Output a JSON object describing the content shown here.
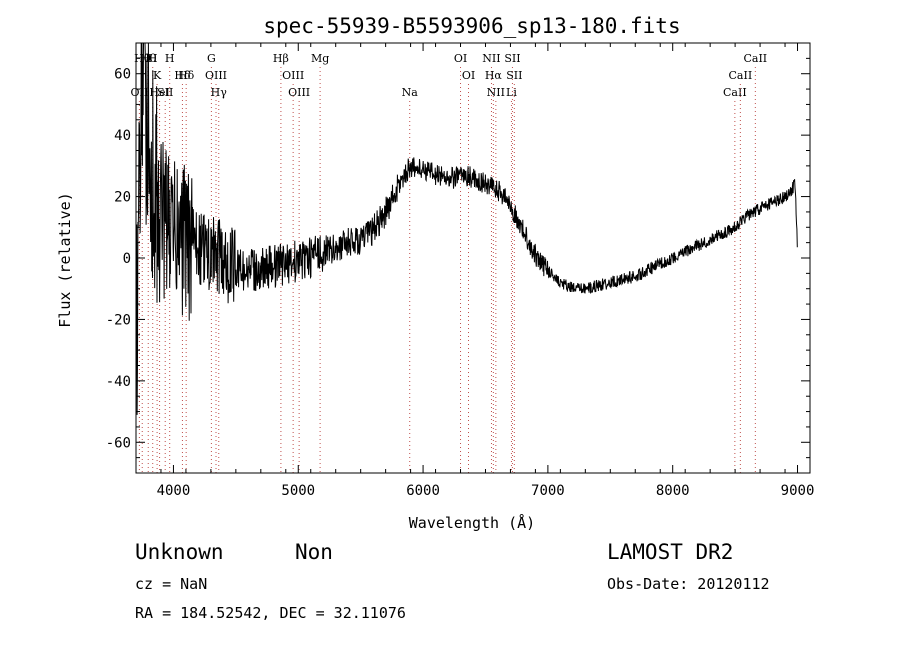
{
  "chart_data": {
    "type": "line",
    "title": "spec-55939-B5593906_sp13-180.fits",
    "xlabel": "Wavelength (Å)",
    "ylabel": "Flux (relative)",
    "xlim": [
      3700,
      9100
    ],
    "ylim": [
      -70,
      70
    ],
    "xticks": [
      4000,
      5000,
      6000,
      7000,
      8000,
      9000
    ],
    "yticks": [
      -60,
      -40,
      -20,
      0,
      20,
      40,
      60
    ],
    "grid": false,
    "legend": "none",
    "line_color": "#000000",
    "marker_color": "#c0504d",
    "series": [
      {
        "x": [
          3700,
          3750,
          3800,
          3850,
          3900,
          3950,
          4000,
          4050,
          4100,
          4150,
          4200,
          4250,
          4300,
          4350,
          4400,
          4450,
          4500,
          4550,
          4600,
          4650,
          4700,
          4750,
          4800,
          4850,
          4900,
          4950,
          5000,
          5050,
          5100,
          5150,
          5200,
          5250,
          5300,
          5350,
          5400,
          5450,
          5500,
          5550,
          5600,
          5650,
          5700,
          5750,
          5800,
          5850,
          5900,
          5950,
          6000,
          6050,
          6100,
          6150,
          6200,
          6250,
          6300,
          6350,
          6400,
          6450,
          6500,
          6550,
          6600,
          6650,
          6700,
          6750,
          6800,
          6850,
          6900,
          6950,
          7000,
          7050,
          7100,
          7150,
          7200,
          7250,
          7300,
          7400,
          7500,
          7600,
          7700,
          7800,
          7900,
          8000,
          8100,
          8200,
          8300,
          8400,
          8500,
          8550,
          8600,
          8700,
          8800,
          8900,
          8950,
          8980,
          9000
        ],
        "y": [
          -30,
          60,
          40,
          20,
          15,
          10,
          8,
          6,
          5,
          4,
          3,
          2,
          1,
          0,
          -1,
          -2,
          -3,
          -4,
          -4,
          -4,
          -4,
          -3,
          -3,
          -2,
          -2,
          -1,
          -1,
          0,
          0,
          1,
          2,
          3,
          3,
          4,
          5,
          5,
          6,
          7,
          9,
          12,
          15,
          19,
          23,
          27,
          30,
          29,
          29,
          28,
          27,
          27,
          26,
          26,
          27,
          27,
          26,
          25,
          24,
          23,
          22,
          20,
          17,
          13,
          9,
          5,
          1,
          -2,
          -4,
          -6,
          -8,
          -9,
          -10,
          -10,
          -10,
          -9,
          -8,
          -7,
          -6,
          -4,
          -2,
          0,
          2,
          4,
          6,
          8,
          10,
          12,
          14,
          16,
          18,
          20,
          22,
          24,
          2
        ]
      }
    ],
    "markers": [
      {
        "x": 3727,
        "label": "OII",
        "row": 3
      },
      {
        "x": 3750,
        "label": "Hθ",
        "row": 1
      },
      {
        "x": 3798,
        "label": "Hθ",
        "row": 1
      },
      {
        "x": 3834,
        "label": "H",
        "row": 1
      },
      {
        "x": 3869,
        "label": "K",
        "row": 2
      },
      {
        "x": 3889,
        "label": "HeI",
        "row": 3
      },
      {
        "x": 3934,
        "label": "SII",
        "row": 3
      },
      {
        "x": 3970,
        "label": "H",
        "row": 1
      },
      {
        "x": 4072,
        "label": "Hδ",
        "row": 2
      },
      {
        "x": 4102,
        "label": "Hδ",
        "row": 2
      },
      {
        "x": 4304,
        "label": "G",
        "row": 1
      },
      {
        "x": 4341,
        "label": "OIII",
        "row": 2
      },
      {
        "x": 4363,
        "label": "Hγ",
        "row": 3
      },
      {
        "x": 4861,
        "label": "Hβ",
        "row": 1
      },
      {
        "x": 4959,
        "label": "OIII",
        "row": 2
      },
      {
        "x": 5007,
        "label": "OIII",
        "row": 3
      },
      {
        "x": 5175,
        "label": "Mg",
        "row": 1
      },
      {
        "x": 5893,
        "label": "Na",
        "row": 3
      },
      {
        "x": 6300,
        "label": "OI",
        "row": 1
      },
      {
        "x": 6364,
        "label": "OI",
        "row": 2
      },
      {
        "x": 6548,
        "label": "NII",
        "row": 1
      },
      {
        "x": 6563,
        "label": "Hα",
        "row": 2
      },
      {
        "x": 6583,
        "label": "NII",
        "row": 3
      },
      {
        "x": 6708,
        "label": "Li",
        "row": 3
      },
      {
        "x": 6716,
        "label": "SII",
        "row": 1
      },
      {
        "x": 6731,
        "label": "SII",
        "row": 2
      },
      {
        "x": 8498,
        "label": "CaII",
        "row": 3
      },
      {
        "x": 8542,
        "label": "CaII",
        "row": 2
      },
      {
        "x": 8662,
        "label": "CaII",
        "row": 1
      }
    ]
  },
  "info": {
    "object_class": "Unknown",
    "object_subclass": "Non",
    "survey": "LAMOST DR2",
    "redshift": "cz = NaN",
    "obs_date": "Obs-Date: 20120112",
    "coords": "RA = 184.52542, DEC =  32.11076"
  }
}
